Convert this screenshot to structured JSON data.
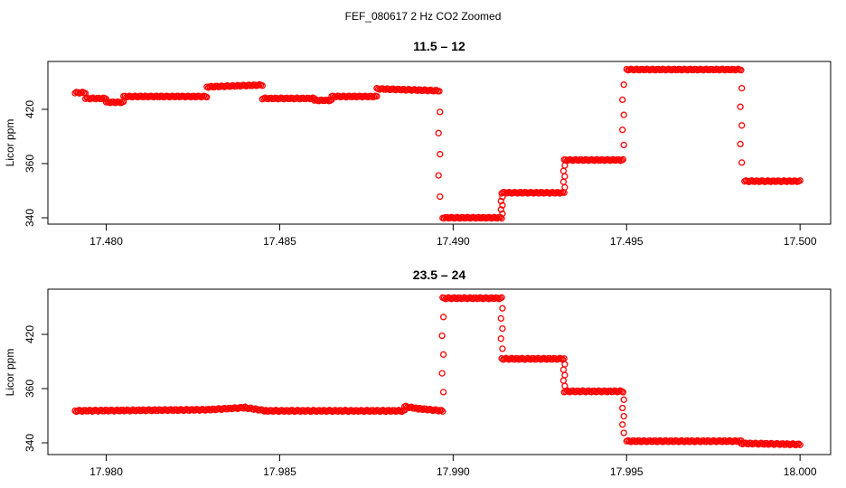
{
  "title": "FEF_080617  2 Hz CO2 Zoomed",
  "point_color": "#ff0000",
  "chart_data": [
    {
      "type": "scatter",
      "title": "11.5 – 12",
      "xlabel": "",
      "ylabel": "Licor ppm",
      "xlim": [
        17.4791,
        17.5001
      ],
      "ylim": [
        336,
        416
      ],
      "xticks": [
        "17.480",
        "17.485",
        "17.490",
        "17.495",
        "17.500"
      ],
      "yticks": [
        "340",
        "360",
        "420"
      ],
      "grid": false,
      "marker": "open-circle",
      "segments": [
        {
          "x": [
            17.4791,
            17.4794
          ],
          "y": [
            404,
            404
          ]
        },
        {
          "x": [
            17.4794,
            17.48
          ],
          "y": [
            401,
            401
          ]
        },
        {
          "x": [
            17.48,
            17.4805
          ],
          "y": [
            399,
            399
          ]
        },
        {
          "x": [
            17.4805,
            17.4829
          ],
          "y": [
            402,
            402
          ]
        },
        {
          "x": [
            17.4829,
            17.4845
          ],
          "y": [
            407,
            408
          ]
        },
        {
          "x": [
            17.4845,
            17.486
          ],
          "y": [
            401,
            401
          ]
        },
        {
          "x": [
            17.486,
            17.4865
          ],
          "y": [
            400,
            400
          ]
        },
        {
          "x": [
            17.4865,
            17.4878
          ],
          "y": [
            402,
            402
          ]
        },
        {
          "x": [
            17.4878,
            17.4896
          ],
          "y": [
            406,
            405
          ]
        },
        {
          "x": [
            17.4897,
            17.4914
          ],
          "y": [
            339,
            339
          ]
        },
        {
          "x": [
            17.4914,
            17.4932
          ],
          "y": [
            352,
            352
          ]
        },
        {
          "x": [
            17.4932,
            17.4949
          ],
          "y": [
            369,
            369
          ]
        },
        {
          "x": [
            17.495,
            17.4983
          ],
          "y": [
            416,
            416
          ]
        },
        {
          "x": [
            17.4984,
            17.5
          ],
          "y": [
            358,
            358
          ]
        }
      ],
      "transitions": [
        {
          "x": 17.4896,
          "y": [
            405,
            339
          ]
        },
        {
          "x": 17.4914,
          "y": [
            339,
            352
          ]
        },
        {
          "x": 17.4932,
          "y": [
            352,
            369
          ]
        },
        {
          "x": 17.4949,
          "y": [
            369,
            416
          ]
        },
        {
          "x": 17.4983,
          "y": [
            416,
            358
          ]
        }
      ]
    },
    {
      "type": "scatter",
      "title": "23.5 – 24",
      "xlabel": "",
      "ylabel": "Licor ppm",
      "xlim": [
        17.9791,
        18.0001
      ],
      "ylim": [
        336,
        416
      ],
      "xticks": [
        "17.980",
        "17.985",
        "17.990",
        "17.995",
        "18.000"
      ],
      "yticks": [
        "340",
        "360",
        "420"
      ],
      "grid": false,
      "marker": "open-circle",
      "segments": [
        {
          "x": [
            17.9791,
            17.9829
          ],
          "y": [
            357,
            357.5
          ]
        },
        {
          "x": [
            17.9829,
            17.984
          ],
          "y": [
            357.5,
            358.5
          ]
        },
        {
          "x": [
            17.984,
            17.9846
          ],
          "y": [
            358.5,
            357
          ]
        },
        {
          "x": [
            17.9846,
            17.9886
          ],
          "y": [
            357,
            357
          ]
        },
        {
          "x": [
            17.9886,
            17.989
          ],
          "y": [
            359,
            358
          ]
        },
        {
          "x": [
            17.989,
            17.9897
          ],
          "y": [
            358,
            357
          ]
        },
        {
          "x": [
            17.9897,
            17.9914
          ],
          "y": [
            409,
            409
          ]
        },
        {
          "x": [
            17.9914,
            17.9932
          ],
          "y": [
            381,
            381
          ]
        },
        {
          "x": [
            17.9932,
            17.9949
          ],
          "y": [
            366,
            366
          ]
        },
        {
          "x": [
            17.995,
            17.9983
          ],
          "y": [
            343,
            343
          ]
        },
        {
          "x": [
            17.9983,
            18.0
          ],
          "y": [
            342,
            341.5
          ]
        }
      ],
      "transitions": [
        {
          "x": 17.9897,
          "y": [
            357,
            409
          ]
        },
        {
          "x": 17.9914,
          "y": [
            409,
            381
          ]
        },
        {
          "x": 17.9932,
          "y": [
            381,
            366
          ]
        },
        {
          "x": 17.9949,
          "y": [
            366,
            343
          ]
        }
      ]
    }
  ]
}
